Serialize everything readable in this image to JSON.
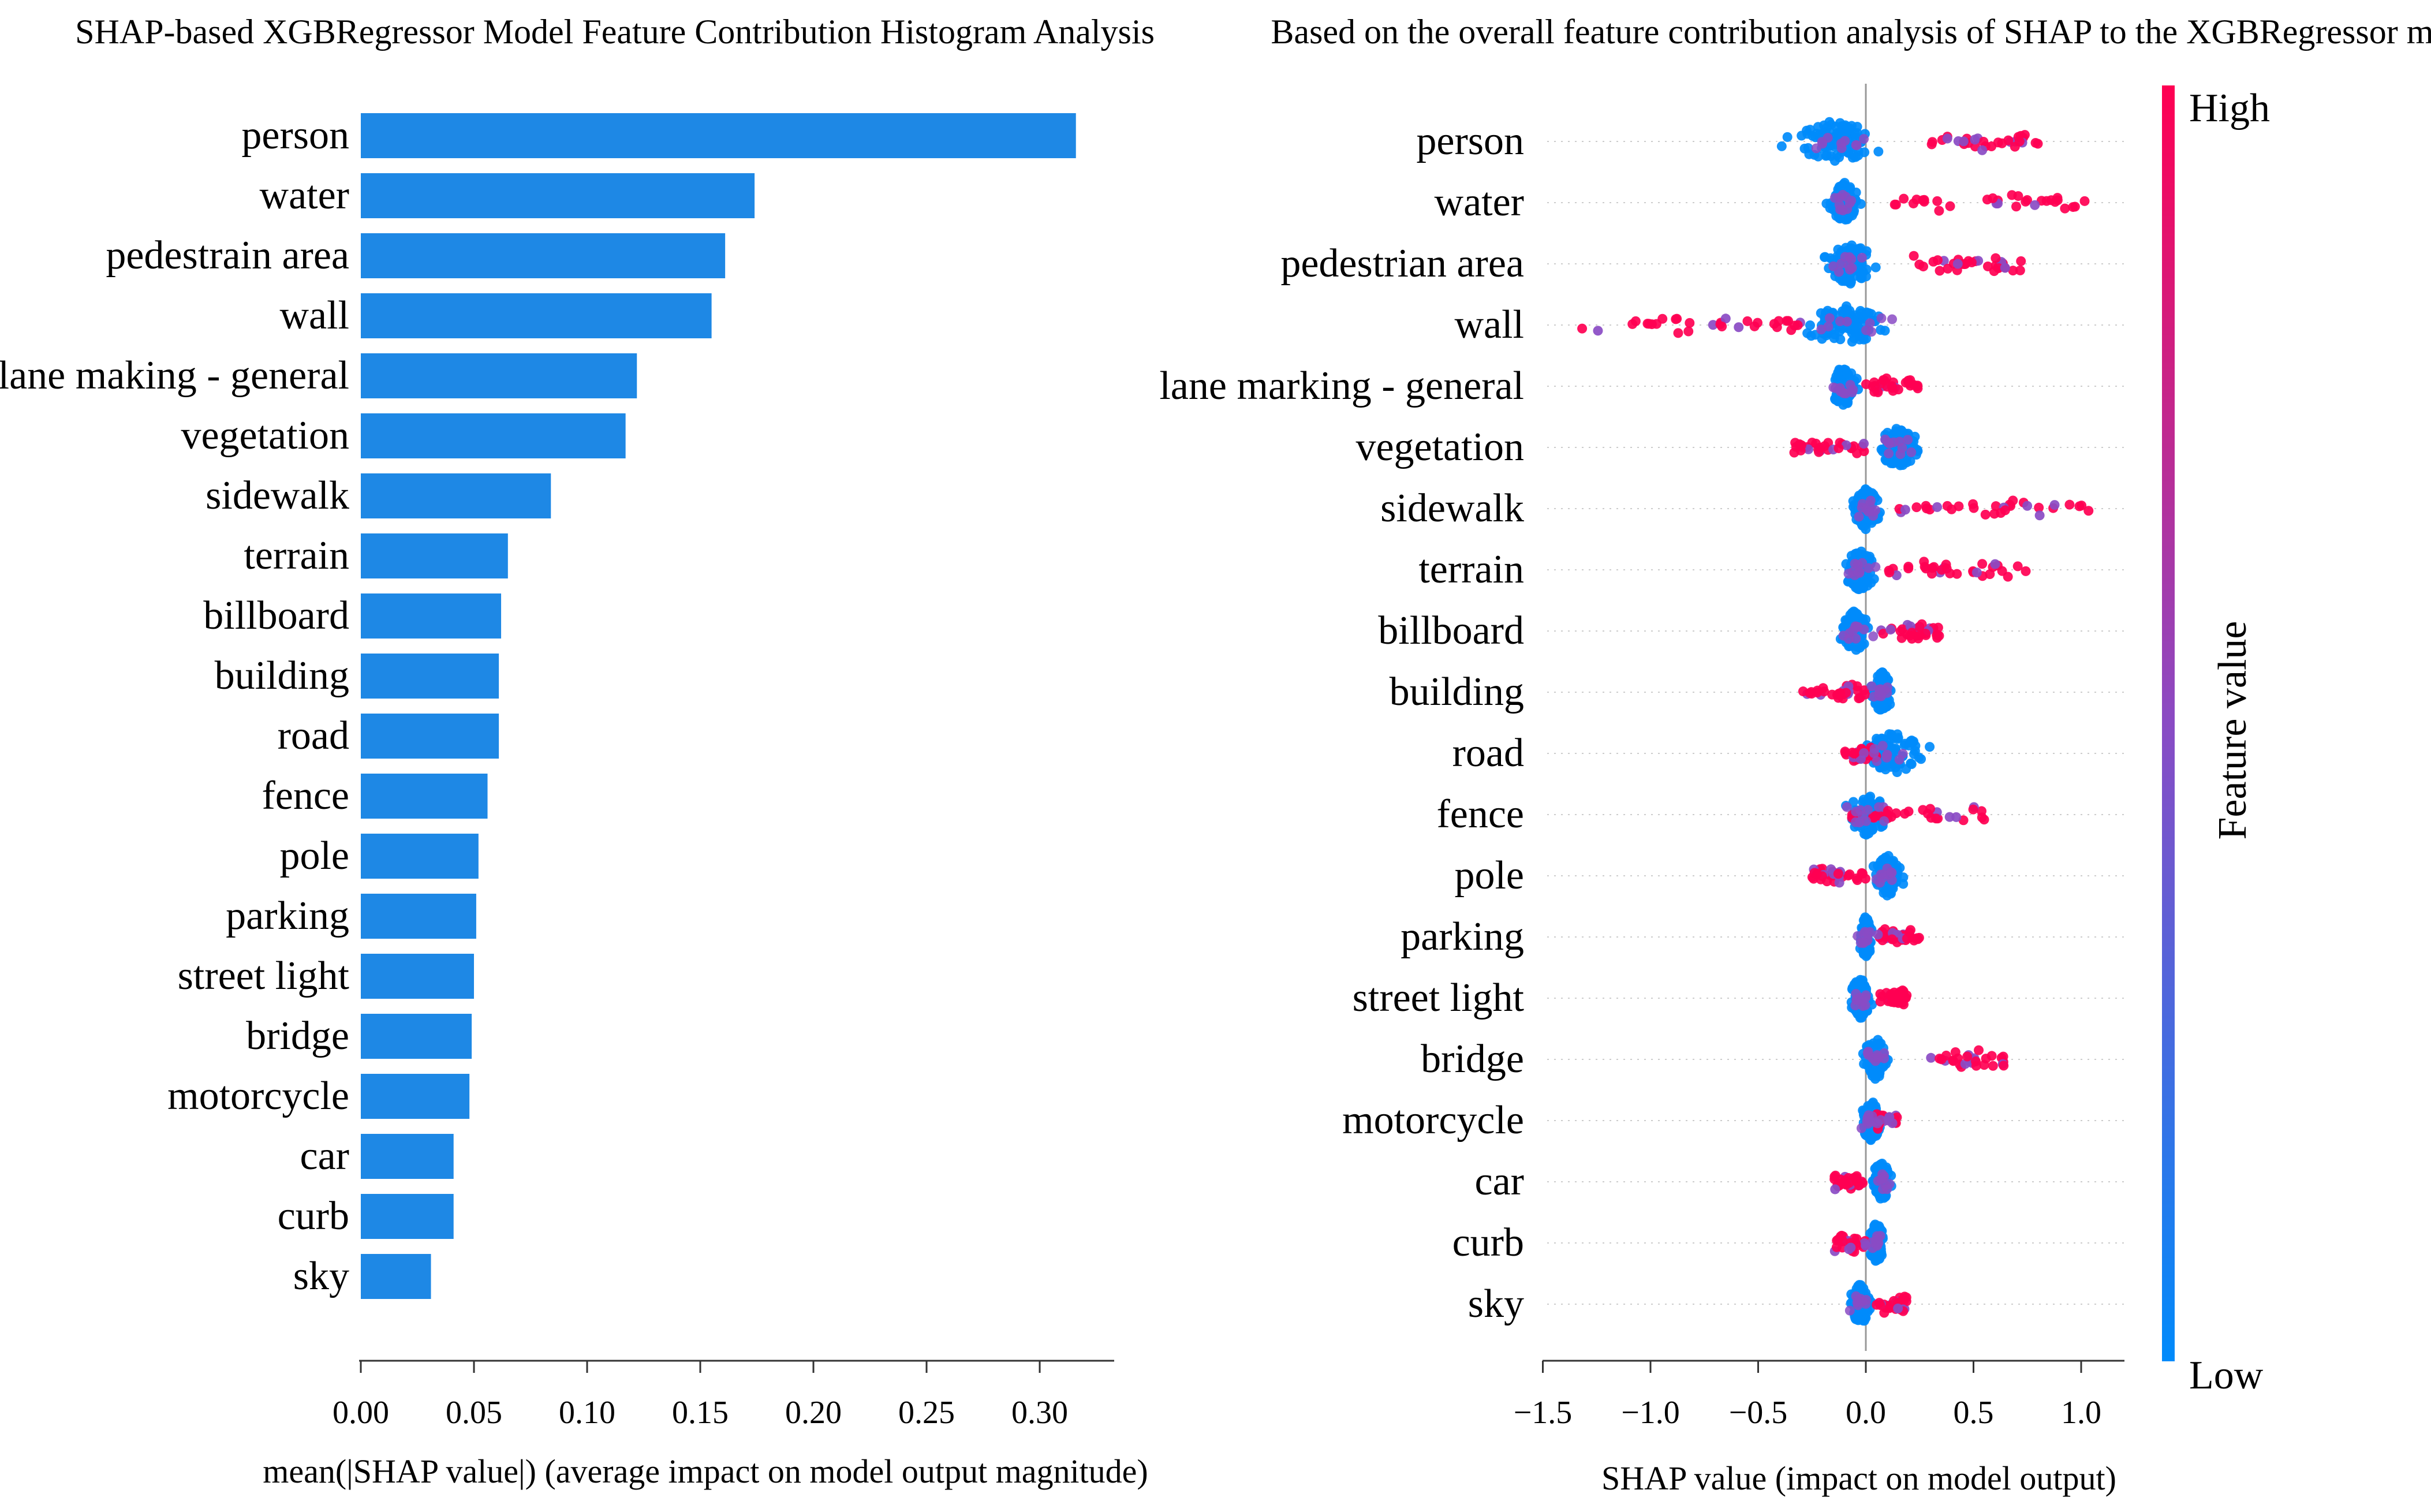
{
  "chart_data": [
    {
      "type": "bar",
      "orientation": "horizontal",
      "title": "SHAP-based XGBRegressor Model Feature Contribution Histogram Analysis",
      "xlabel": "mean(|SHAP value|) (average impact on model output magnitude)",
      "ylabel": "",
      "xlim": [
        0,
        0.33
      ],
      "xticks": [
        "0.00",
        "0.05",
        "0.10",
        "0.15",
        "0.20",
        "0.25",
        "0.30"
      ],
      "color": "#1E88E5",
      "categories": [
        "person",
        "water",
        "pedestrain area",
        "wall",
        "lane making - general",
        "vegetation",
        "sidewalk",
        "terrain",
        "billboard",
        "building",
        "road",
        "fence",
        "pole",
        "parking",
        "street light",
        "bridge",
        "motorcycle",
        "car",
        "curb",
        "sky"
      ],
      "values": [
        0.316,
        0.174,
        0.161,
        0.155,
        0.122,
        0.117,
        0.084,
        0.065,
        0.062,
        0.061,
        0.061,
        0.056,
        0.052,
        0.051,
        0.05,
        0.049,
        0.048,
        0.041,
        0.041,
        0.031
      ]
    },
    {
      "type": "scatter",
      "subtype": "beeswarm",
      "title": "Based on the overall feature contribution analysis of SHAP to the XGBRegressor model",
      "xlabel": "SHAP value (impact on model output)",
      "xlim": [
        -1.5,
        1.2
      ],
      "xticks": [
        "−1.5",
        "−1.0",
        "−0.5",
        "0.0",
        "0.5",
        "1.0"
      ],
      "colorbar": {
        "label": "Feature value",
        "high": "High",
        "low": "Low",
        "high_color": "#FF0052",
        "low_color": "#008BFB"
      },
      "features": [
        {
          "name": "person",
          "low_range": [
            -0.5,
            0.2
          ],
          "high_range": [
            0.3,
            0.8
          ]
        },
        {
          "name": "water",
          "low_range": [
            -0.2,
            0.0
          ],
          "high_range": [
            0.1,
            1.05
          ]
        },
        {
          "name": "pedestrian area",
          "low_range": [
            -0.25,
            0.1
          ],
          "high_range": [
            0.2,
            0.75
          ]
        },
        {
          "name": "wall",
          "low_range": [
            -0.4,
            0.2
          ],
          "high_range": [
            -1.35,
            -0.3
          ]
        },
        {
          "name": "lane marking - general",
          "low_range": [
            -0.2,
            0.0
          ],
          "high_range": [
            0.0,
            0.25
          ]
        },
        {
          "name": "vegetation",
          "low_range": [
            0.0,
            0.3
          ],
          "high_range": [
            -0.35,
            0.0
          ]
        },
        {
          "name": "sidewalk",
          "low_range": [
            -0.1,
            0.1
          ],
          "high_range": [
            0.05,
            1.05
          ]
        },
        {
          "name": "terrain",
          "low_range": [
            -0.15,
            0.1
          ],
          "high_range": [
            0.1,
            0.75
          ]
        },
        {
          "name": "billboard",
          "low_range": [
            -0.15,
            0.05
          ],
          "high_range": [
            0.05,
            0.35
          ]
        },
        {
          "name": "building",
          "low_range": [
            0.0,
            0.15
          ],
          "high_range": [
            -0.3,
            0.0
          ]
        },
        {
          "name": "road",
          "low_range": [
            -0.1,
            0.35
          ],
          "high_range": [
            -0.1,
            0.05
          ]
        },
        {
          "name": "fence",
          "low_range": [
            -0.15,
            0.15
          ],
          "high_range": [
            -0.1,
            0.55
          ]
        },
        {
          "name": "pole",
          "low_range": [
            0.0,
            0.2
          ],
          "high_range": [
            -0.25,
            0.0
          ]
        },
        {
          "name": "parking",
          "low_range": [
            -0.05,
            0.05
          ],
          "high_range": [
            0.05,
            0.25
          ]
        },
        {
          "name": "street light",
          "low_range": [
            -0.1,
            0.05
          ],
          "high_range": [
            0.05,
            0.2
          ]
        },
        {
          "name": "bridge",
          "low_range": [
            -0.05,
            0.15
          ],
          "high_range": [
            0.3,
            0.65
          ]
        },
        {
          "name": "motorcycle",
          "low_range": [
            -0.05,
            0.1
          ],
          "high_range": [
            0.05,
            0.15
          ]
        },
        {
          "name": "car",
          "low_range": [
            0.0,
            0.15
          ],
          "high_range": [
            -0.15,
            0.0
          ]
        },
        {
          "name": "curb",
          "low_range": [
            0.0,
            0.1
          ],
          "high_range": [
            -0.15,
            0.0
          ]
        },
        {
          "name": "sky",
          "low_range": [
            -0.1,
            0.05
          ],
          "high_range": [
            0.05,
            0.2
          ]
        }
      ]
    }
  ]
}
